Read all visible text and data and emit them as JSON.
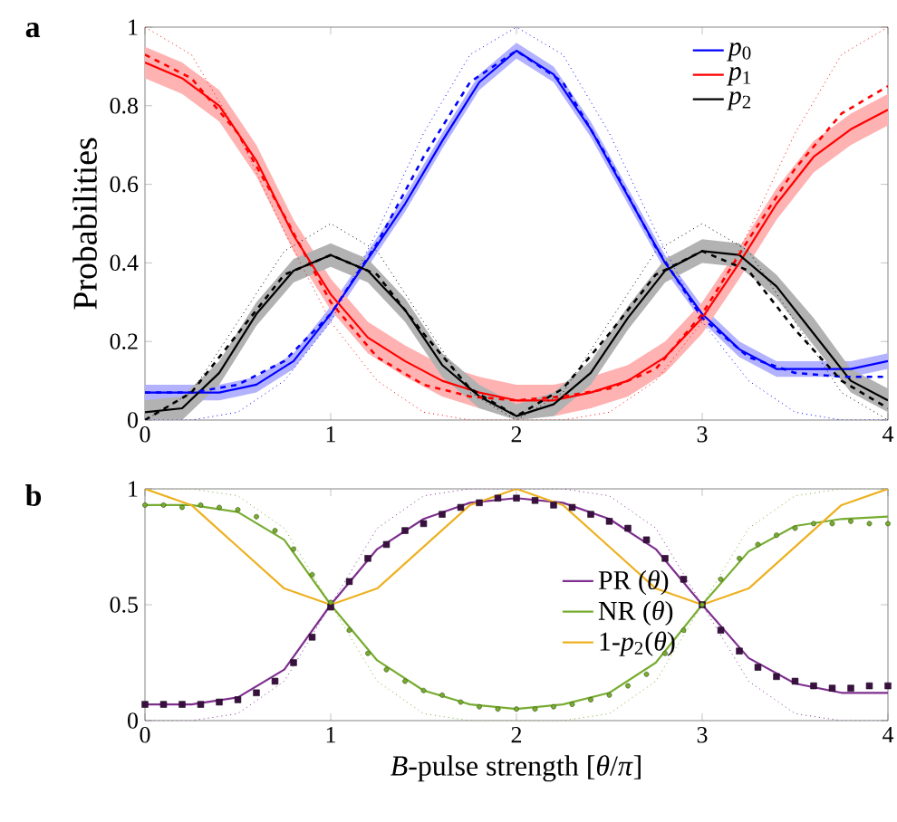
{
  "chart_data": [
    {
      "type": "line",
      "title": "a",
      "ylabel": "Probabilities",
      "xlim": [
        0,
        4
      ],
      "ylim": [
        0,
        1
      ],
      "xticks": [
        0,
        1,
        2,
        3,
        4
      ],
      "yticks": [
        0,
        0.2,
        0.4,
        0.6,
        0.8,
        1
      ],
      "legend": "top right",
      "series": [
        {
          "name": "*p*$_{0}$",
          "color": "#0000ff",
          "line_style": "solid",
          "x": [
            0,
            0.2,
            0.4,
            0.6,
            0.8,
            1,
            1.2,
            1.4,
            1.6,
            1.8,
            2,
            2.2,
            2.4,
            2.6,
            2.8,
            3,
            3.2,
            3.4,
            3.6,
            3.8,
            4
          ],
          "values": [
            0.07,
            0.07,
            0.07,
            0.09,
            0.15,
            0.27,
            0.41,
            0.55,
            0.71,
            0.86,
            0.94,
            0.88,
            0.74,
            0.57,
            0.4,
            0.27,
            0.18,
            0.13,
            0.13,
            0.13,
            0.15
          ],
          "lower": [
            0.05,
            0.05,
            0.05,
            0.07,
            0.13,
            0.25,
            0.39,
            0.53,
            0.69,
            0.84,
            0.92,
            0.86,
            0.72,
            0.55,
            0.38,
            0.25,
            0.16,
            0.11,
            0.11,
            0.11,
            0.13
          ],
          "upper": [
            0.09,
            0.09,
            0.09,
            0.11,
            0.17,
            0.29,
            0.43,
            0.57,
            0.73,
            0.88,
            0.96,
            0.9,
            0.76,
            0.59,
            0.42,
            0.29,
            0.2,
            0.15,
            0.15,
            0.15,
            0.17
          ]
        },
        {
          "name": "*p*$_{1}$",
          "color": "#ff0000",
          "line_style": "solid",
          "x": [
            0,
            0.2,
            0.4,
            0.6,
            0.8,
            1,
            1.2,
            1.4,
            1.6,
            1.8,
            2,
            2.2,
            2.4,
            2.6,
            2.8,
            3,
            3.2,
            3.4,
            3.6,
            3.8,
            4
          ],
          "values": [
            0.91,
            0.87,
            0.8,
            0.66,
            0.47,
            0.32,
            0.21,
            0.15,
            0.1,
            0.07,
            0.05,
            0.05,
            0.07,
            0.1,
            0.16,
            0.26,
            0.4,
            0.55,
            0.67,
            0.74,
            0.79
          ],
          "lower": [
            0.87,
            0.83,
            0.76,
            0.62,
            0.43,
            0.28,
            0.17,
            0.11,
            0.06,
            0.03,
            0.01,
            0.01,
            0.03,
            0.06,
            0.12,
            0.22,
            0.36,
            0.51,
            0.63,
            0.7,
            0.75
          ],
          "upper": [
            0.95,
            0.91,
            0.84,
            0.7,
            0.51,
            0.36,
            0.25,
            0.19,
            0.14,
            0.11,
            0.09,
            0.09,
            0.11,
            0.14,
            0.2,
            0.3,
            0.44,
            0.59,
            0.71,
            0.78,
            0.83
          ]
        },
        {
          "name": "*p*$_{2}$",
          "color": "#000000",
          "line_style": "solid",
          "x": [
            0,
            0.2,
            0.4,
            0.6,
            0.8,
            1,
            1.2,
            1.4,
            1.6,
            1.8,
            2,
            2.2,
            2.4,
            2.6,
            2.8,
            3,
            3.2,
            3.4,
            3.6,
            3.8,
            4
          ],
          "values": [
            0.02,
            0.03,
            0.12,
            0.27,
            0.38,
            0.42,
            0.38,
            0.28,
            0.14,
            0.06,
            0.01,
            0.04,
            0.12,
            0.26,
            0.38,
            0.43,
            0.42,
            0.34,
            0.22,
            0.1,
            0.05
          ],
          "lower": [
            0,
            0,
            0.09,
            0.24,
            0.35,
            0.39,
            0.35,
            0.25,
            0.11,
            0.03,
            0,
            0.01,
            0.09,
            0.23,
            0.35,
            0.4,
            0.39,
            0.31,
            0.19,
            0.07,
            0.02
          ],
          "upper": [
            0.05,
            0.06,
            0.15,
            0.3,
            0.41,
            0.45,
            0.41,
            0.31,
            0.17,
            0.09,
            0.04,
            0.07,
            0.15,
            0.29,
            0.41,
            0.46,
            0.45,
            0.37,
            0.26,
            0.13,
            0.08
          ]
        },
        {
          "color": "#0000ff",
          "line_style": "dashed",
          "x": [
            0,
            0.25,
            0.5,
            0.75,
            1,
            1.25,
            1.5,
            1.75,
            2,
            2.25,
            2.5,
            2.75,
            3,
            3.25,
            3.5,
            3.75,
            4
          ],
          "values": [
            0.07,
            0.07,
            0.09,
            0.15,
            0.27,
            0.45,
            0.67,
            0.86,
            0.94,
            0.86,
            0.66,
            0.44,
            0.26,
            0.16,
            0.12,
            0.11,
            0.11
          ]
        },
        {
          "color": "#ff0000",
          "line_style": "dashed",
          "x": [
            0,
            0.25,
            0.5,
            0.75,
            1,
            1.25,
            1.5,
            1.75,
            2,
            2.25,
            2.5,
            2.75,
            3,
            3.25,
            3.5,
            3.75,
            4
          ],
          "values": [
            0.93,
            0.87,
            0.73,
            0.52,
            0.3,
            0.16,
            0.09,
            0.06,
            0.05,
            0.06,
            0.08,
            0.13,
            0.27,
            0.46,
            0.64,
            0.78,
            0.85
          ]
        },
        {
          "color": "#000000",
          "line_style": "dashed",
          "x": [
            0,
            0.25,
            0.5,
            0.75,
            1,
            1.25,
            1.5,
            1.75,
            2,
            2.25,
            2.5,
            2.75,
            3,
            3.25,
            3.5,
            3.75,
            4
          ],
          "values": [
            0,
            0.07,
            0.22,
            0.37,
            0.42,
            0.37,
            0.22,
            0.08,
            0.01,
            0.08,
            0.22,
            0.37,
            0.43,
            0.38,
            0.23,
            0.1,
            0.03
          ]
        },
        {
          "color": "#0000ff",
          "line_style": "dotted",
          "x": [
            0,
            0.25,
            0.5,
            0.75,
            1,
            1.25,
            1.5,
            1.75,
            2,
            2.25,
            2.5,
            2.75,
            3,
            3.25,
            3.5,
            3.75,
            4
          ],
          "values": [
            0,
            0,
            0.02,
            0.1,
            0.25,
            0.48,
            0.73,
            0.93,
            1,
            0.93,
            0.73,
            0.48,
            0.25,
            0.1,
            0.02,
            0,
            0
          ]
        },
        {
          "color": "#ff0000",
          "line_style": "dotted",
          "x": [
            0,
            0.25,
            0.5,
            0.75,
            1,
            1.25,
            1.5,
            1.75,
            2,
            2.25,
            2.5,
            2.75,
            3,
            3.25,
            3.5,
            3.75,
            4
          ],
          "values": [
            1,
            0.93,
            0.73,
            0.48,
            0.25,
            0.1,
            0.02,
            0,
            0,
            0,
            0.02,
            0.1,
            0.25,
            0.48,
            0.73,
            0.93,
            1
          ]
        },
        {
          "color": "#000000",
          "line_style": "dotted",
          "x": [
            0,
            0.25,
            0.5,
            0.75,
            1,
            1.25,
            1.5,
            1.75,
            2,
            2.25,
            2.5,
            2.75,
            3,
            3.25,
            3.5,
            3.75,
            4
          ],
          "values": [
            0,
            0.07,
            0.25,
            0.43,
            0.5,
            0.43,
            0.25,
            0.07,
            0,
            0.07,
            0.25,
            0.43,
            0.5,
            0.43,
            0.25,
            0.07,
            0
          ]
        }
      ]
    },
    {
      "type": "line",
      "title": "b",
      "xlabel": "*B*-pulse strength [*θ*/*π*]",
      "xlim": [
        0,
        4
      ],
      "ylim": [
        0,
        1
      ],
      "xticks": [
        0,
        1,
        2,
        3,
        4
      ],
      "yticks": [
        0,
        0.5,
        1
      ],
      "legend": "center",
      "series": [
        {
          "name": "PR (*θ*)",
          "color": "#7e2f8e",
          "line_style": "solid",
          "x": [
            0,
            0.25,
            0.5,
            0.75,
            1,
            1.25,
            1.5,
            1.75,
            2,
            2.25,
            2.5,
            2.75,
            3,
            3.25,
            3.5,
            3.75,
            4
          ],
          "values": [
            0.07,
            0.07,
            0.1,
            0.22,
            0.5,
            0.74,
            0.87,
            0.94,
            0.96,
            0.94,
            0.87,
            0.74,
            0.5,
            0.27,
            0.16,
            0.12,
            0.12
          ]
        },
        {
          "name": "NR (*θ*)",
          "color": "#77ac30",
          "line_style": "solid",
          "x": [
            0,
            0.25,
            0.5,
            0.75,
            1,
            1.25,
            1.5,
            1.75,
            2,
            2.25,
            2.5,
            2.75,
            3,
            3.25,
            3.5,
            3.75,
            4
          ],
          "values": [
            0.93,
            0.93,
            0.9,
            0.78,
            0.5,
            0.26,
            0.13,
            0.07,
            0.05,
            0.07,
            0.12,
            0.25,
            0.5,
            0.73,
            0.84,
            0.87,
            0.88
          ]
        },
        {
          "name": "1-*p*$_{2}$(*θ*)",
          "color": "#edb120",
          "line_style": "solid",
          "x": [
            0,
            0.25,
            0.5,
            0.75,
            1,
            1.25,
            1.5,
            1.75,
            2,
            2.25,
            2.5,
            2.75,
            3,
            3.25,
            3.5,
            3.75,
            4
          ],
          "values": [
            1,
            0.93,
            0.75,
            0.57,
            0.5,
            0.57,
            0.75,
            0.93,
            1,
            0.93,
            0.75,
            0.57,
            0.5,
            0.57,
            0.75,
            0.93,
            1
          ]
        },
        {
          "color": "#7e2f8e",
          "line_style": "dotted",
          "x": [
            0,
            0.25,
            0.5,
            0.75,
            1,
            1.25,
            1.5,
            1.75,
            2,
            2.25,
            2.5,
            2.75,
            3,
            3.25,
            3.5,
            3.75,
            4
          ],
          "values": [
            0,
            0,
            0.03,
            0.17,
            0.5,
            0.83,
            0.97,
            1,
            1,
            1,
            0.97,
            0.83,
            0.5,
            0.17,
            0.03,
            0,
            0
          ]
        },
        {
          "color": "#77ac30",
          "line_style": "dotted",
          "x": [
            0,
            0.25,
            0.5,
            0.75,
            1,
            1.25,
            1.5,
            1.75,
            2,
            2.25,
            2.5,
            2.75,
            3,
            3.25,
            3.5,
            3.75,
            4
          ],
          "values": [
            1,
            1,
            0.97,
            0.83,
            0.5,
            0.17,
            0.03,
            0,
            0,
            0,
            0.03,
            0.17,
            0.5,
            0.83,
            0.97,
            1,
            1
          ]
        },
        {
          "type": "scatter",
          "marker": "square",
          "color": "#3a1040",
          "x": [
            0,
            0.1,
            0.2,
            0.3,
            0.4,
            0.5,
            0.6,
            0.7,
            0.8,
            0.9,
            1,
            1.1,
            1.2,
            1.3,
            1.4,
            1.5,
            1.6,
            1.7,
            1.8,
            1.9,
            2,
            2.1,
            2.2,
            2.3,
            2.4,
            2.5,
            2.6,
            2.7,
            2.8,
            2.9,
            3,
            3.1,
            3.2,
            3.3,
            3.4,
            3.5,
            3.6,
            3.7,
            3.8,
            3.9,
            4
          ],
          "values": [
            0.07,
            0.07,
            0.07,
            0.07,
            0.08,
            0.09,
            0.12,
            0.17,
            0.25,
            0.36,
            0.49,
            0.6,
            0.7,
            0.76,
            0.82,
            0.85,
            0.89,
            0.92,
            0.94,
            0.96,
            0.96,
            0.95,
            0.93,
            0.92,
            0.89,
            0.86,
            0.83,
            0.78,
            0.7,
            0.61,
            0.5,
            0.39,
            0.3,
            0.23,
            0.19,
            0.17,
            0.15,
            0.14,
            0.14,
            0.15,
            0.15
          ]
        },
        {
          "type": "scatter",
          "marker": "circle",
          "color": "#77ac30",
          "x": [
            0,
            0.1,
            0.2,
            0.3,
            0.4,
            0.5,
            0.6,
            0.7,
            0.8,
            0.9,
            1,
            1.1,
            1.2,
            1.3,
            1.4,
            1.5,
            1.6,
            1.7,
            1.8,
            1.9,
            2,
            2.1,
            2.2,
            2.3,
            2.4,
            2.5,
            2.6,
            2.7,
            2.8,
            2.9,
            3,
            3.1,
            3.2,
            3.3,
            3.4,
            3.5,
            3.6,
            3.7,
            3.8,
            3.9,
            4
          ],
          "values": [
            0.93,
            0.93,
            0.92,
            0.93,
            0.92,
            0.91,
            0.88,
            0.82,
            0.74,
            0.63,
            0.51,
            0.39,
            0.29,
            0.22,
            0.17,
            0.13,
            0.11,
            0.08,
            0.06,
            0.05,
            0.05,
            0.05,
            0.06,
            0.07,
            0.09,
            0.11,
            0.15,
            0.2,
            0.29,
            0.39,
            0.5,
            0.61,
            0.7,
            0.76,
            0.8,
            0.83,
            0.85,
            0.85,
            0.86,
            0.85,
            0.85
          ]
        }
      ]
    }
  ]
}
